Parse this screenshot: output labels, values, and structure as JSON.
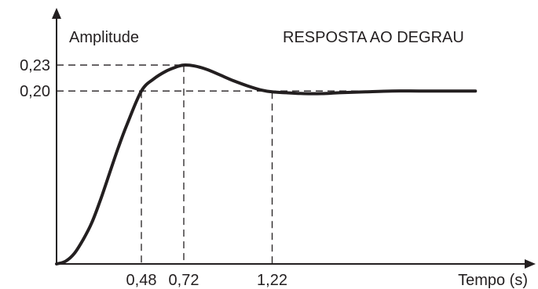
{
  "chart_data": {
    "type": "line",
    "title": "RESPOSTA AO DEGRAU",
    "xlabel": "Tempo (s)",
    "ylabel": "Amplitude",
    "xlim": [
      0,
      2.4
    ],
    "ylim": [
      0,
      0.27
    ],
    "x_ticks": [
      {
        "value": 0.48,
        "label": "0,48"
      },
      {
        "value": 0.72,
        "label": "0,72"
      },
      {
        "value": 1.22,
        "label": "1,22"
      }
    ],
    "y_ticks": [
      {
        "value": 0.23,
        "label": "0,23"
      },
      {
        "value": 0.2,
        "label": "0,20"
      }
    ],
    "series": [
      {
        "x": [
          0,
          0.05,
          0.1,
          0.15,
          0.2,
          0.25,
          0.3,
          0.35,
          0.4,
          0.48,
          0.55,
          0.62,
          0.68,
          0.72,
          0.78,
          0.85,
          0.92,
          1.0,
          1.08,
          1.16,
          1.22,
          1.3,
          1.4,
          1.5,
          1.6,
          1.75,
          1.9,
          2.05,
          2.2,
          2.37
        ],
        "y": [
          0,
          0.003,
          0.012,
          0.028,
          0.048,
          0.075,
          0.105,
          0.135,
          0.162,
          0.2,
          0.214,
          0.223,
          0.228,
          0.23,
          0.229,
          0.225,
          0.219,
          0.212,
          0.206,
          0.201,
          0.199,
          0.198,
          0.197,
          0.197,
          0.198,
          0.199,
          0.2,
          0.2,
          0.2,
          0.2
        ]
      }
    ],
    "grid": false,
    "colors": {
      "line": "#231f20",
      "background": "#ffffff"
    }
  }
}
